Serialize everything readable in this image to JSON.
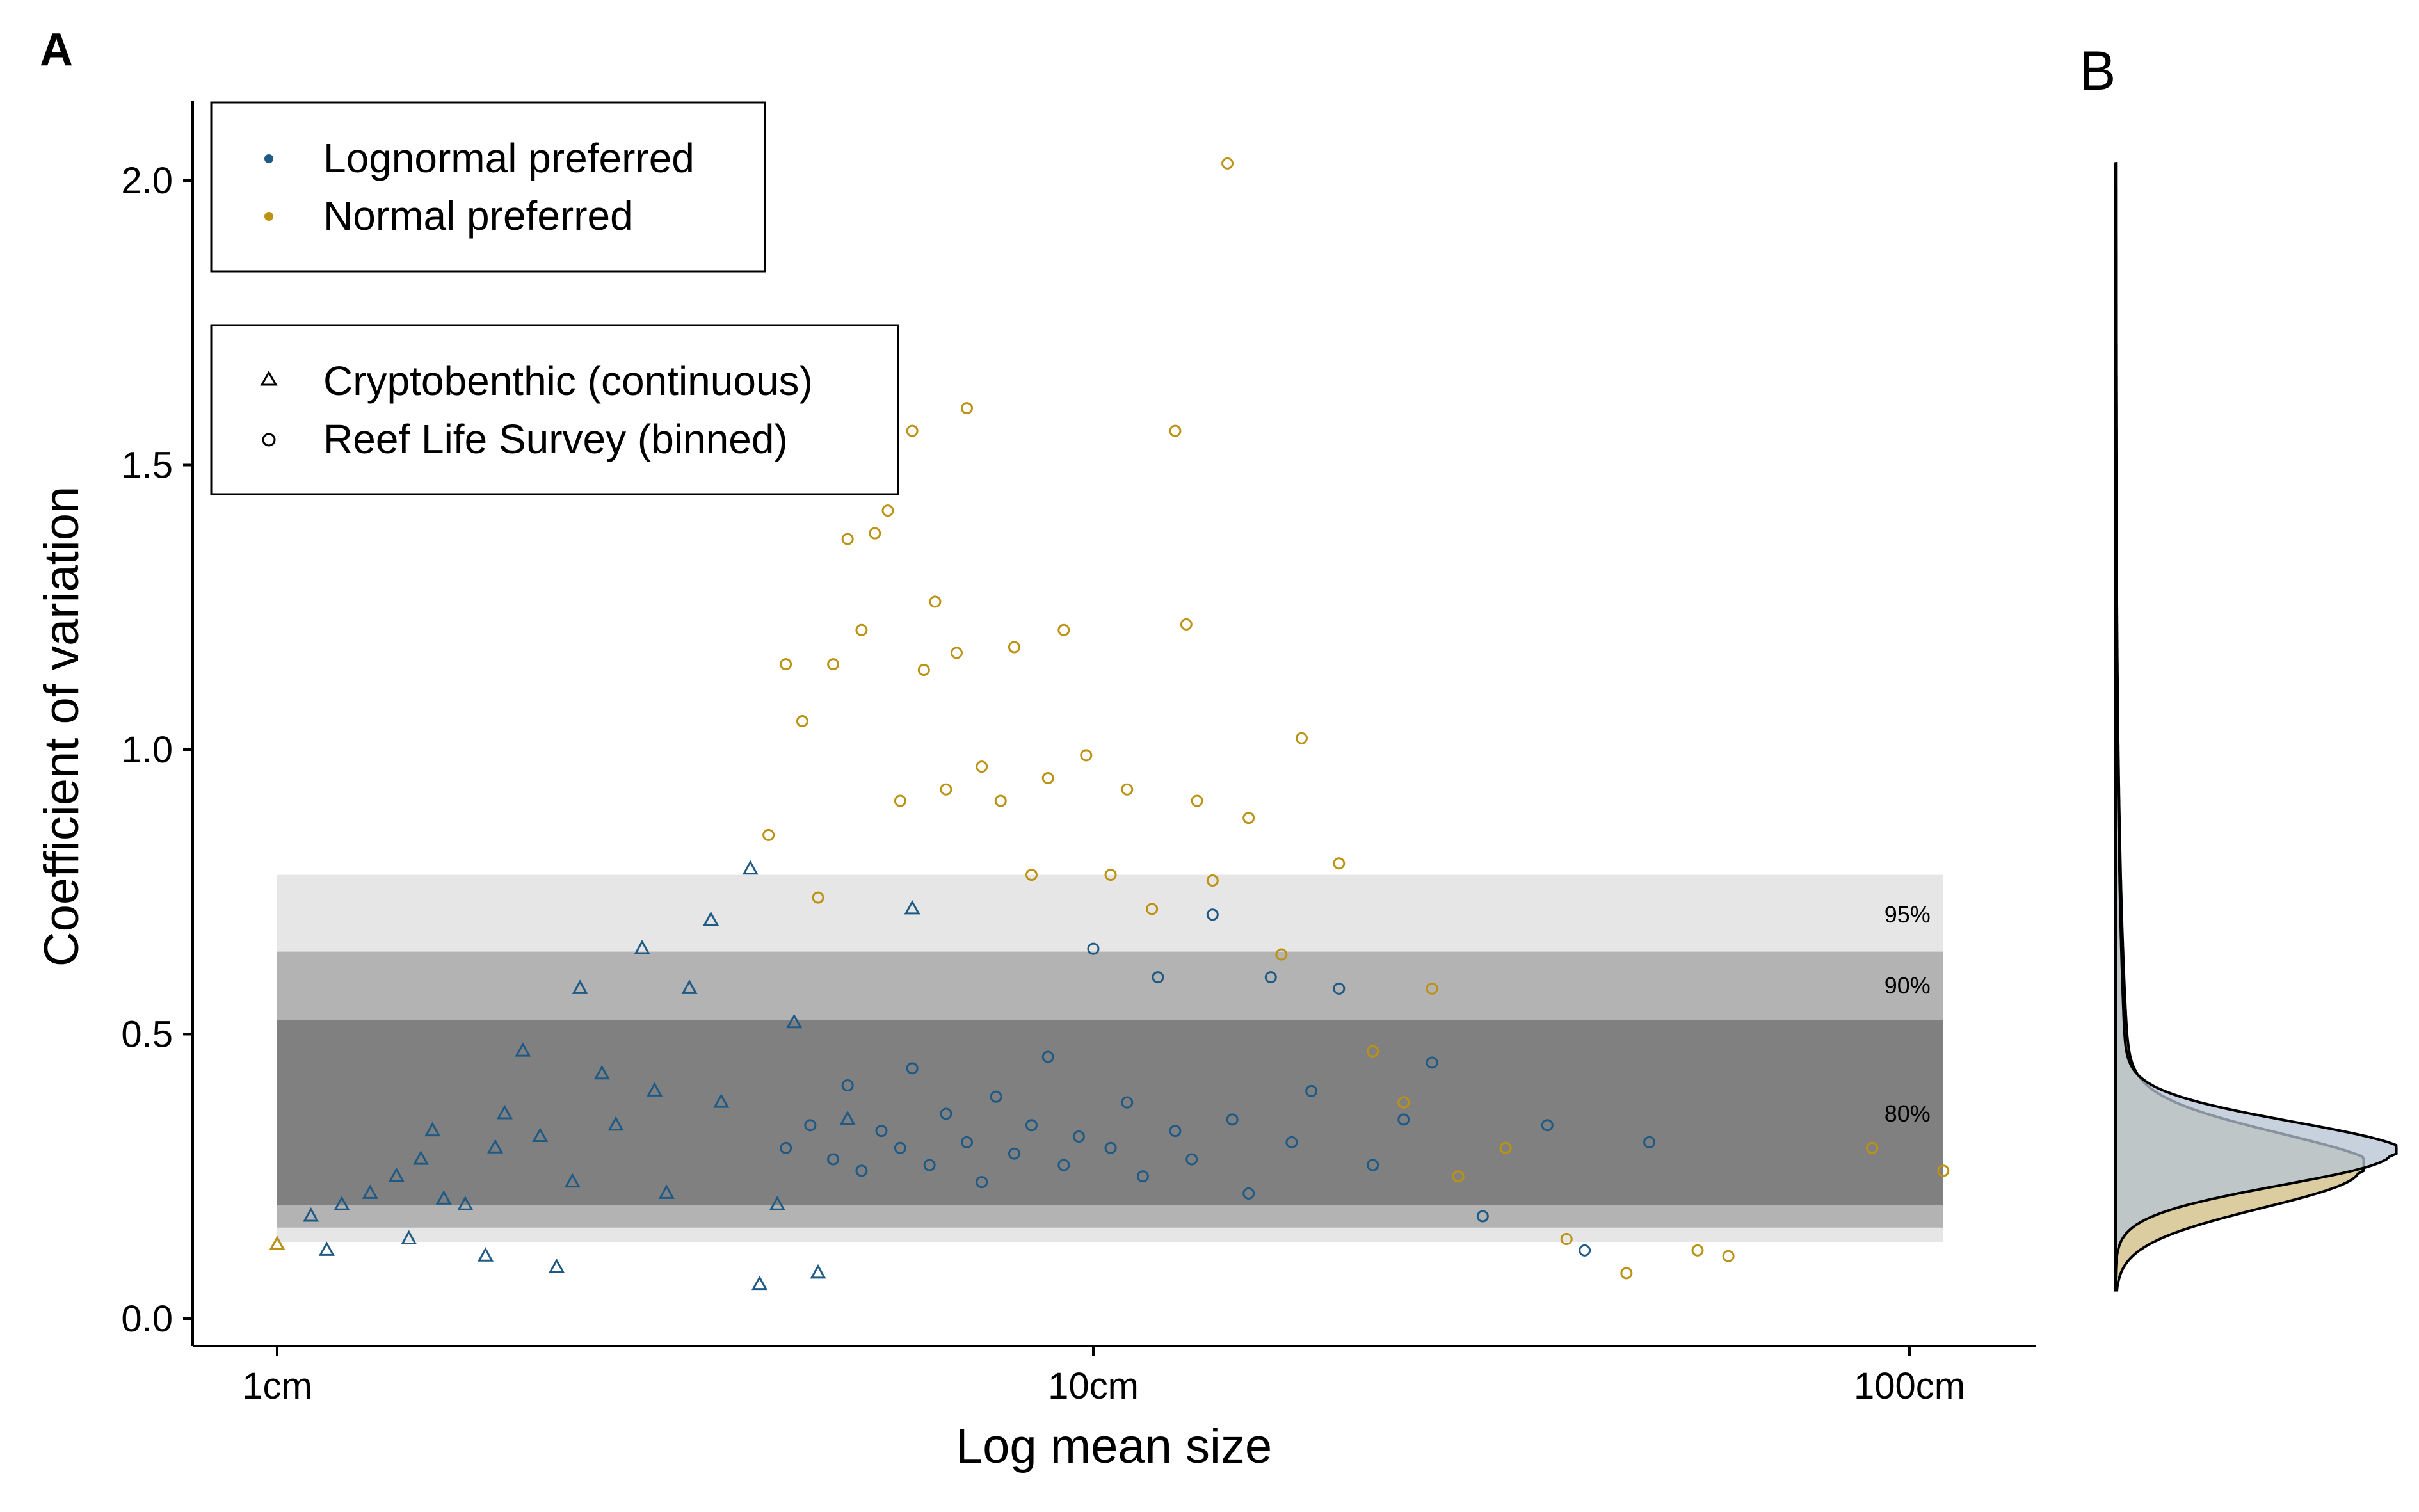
{
  "panel_labels": {
    "a": "A",
    "b": "B"
  },
  "colors": {
    "lognormal": "#1f5a85",
    "normal": "#bb9212",
    "band95": "#e6e6e6",
    "band90": "#b3b3b3",
    "band80": "#808080",
    "density_normal_fill": "#d8c896",
    "density_lognormal_fill": "#b5c3d4",
    "density_overlap_fill": "#b9b78f"
  },
  "legend_color": {
    "items": [
      {
        "label": "Lognormal preferred",
        "color": "#1f5a85"
      },
      {
        "label": "Normal preferred",
        "color": "#bb9212"
      }
    ]
  },
  "legend_shape": {
    "items": [
      {
        "label": "Cryptobenthic (continuous)",
        "shape": "triangle"
      },
      {
        "label": "Reef Life Survey (binned)",
        "shape": "circle"
      }
    ]
  },
  "chart_data": {
    "type": "scatter",
    "xlabel": "Log mean size",
    "ylabel": "Coefficient of variation",
    "x_scale": "log10",
    "xlim": [
      0.8,
      140
    ],
    "ylim": [
      -0.05,
      2.14
    ],
    "x_ticks": [
      {
        "value": 1,
        "label": "1cm"
      },
      {
        "value": 10,
        "label": "10cm"
      },
      {
        "value": 100,
        "label": "100cm"
      }
    ],
    "y_ticks": [
      {
        "value": 0.0,
        "label": "0.0"
      },
      {
        "value": 0.5,
        "label": "0.5"
      },
      {
        "value": 1.0,
        "label": "1.0"
      },
      {
        "value": 1.5,
        "label": "1.5"
      },
      {
        "value": 2.0,
        "label": "2.0"
      }
    ],
    "grid": false,
    "bands": [
      {
        "label": "95%",
        "ymin": 0.135,
        "ymax": 0.78,
        "x_from": 1,
        "x_to": 110
      },
      {
        "label": "90%",
        "ymin": 0.16,
        "ymax": 0.645,
        "x_from": 1,
        "x_to": 110
      },
      {
        "label": "80%",
        "ymin": 0.2,
        "ymax": 0.525,
        "x_from": 1,
        "x_to": 110
      }
    ],
    "series": [
      {
        "name": "Lognormal preferred",
        "shape": "triangle",
        "points": [
          [
            1.0,
            0.13
          ],
          [
            1.1,
            0.18
          ],
          [
            1.15,
            0.12
          ],
          [
            1.2,
            0.2
          ],
          [
            1.3,
            0.22
          ],
          [
            1.4,
            0.25
          ],
          [
            1.45,
            0.14
          ],
          [
            1.5,
            0.28
          ],
          [
            1.55,
            0.33
          ],
          [
            1.6,
            0.21
          ],
          [
            1.7,
            0.2
          ],
          [
            1.8,
            0.11
          ],
          [
            1.85,
            0.3
          ],
          [
            1.9,
            0.36
          ],
          [
            2.0,
            0.47
          ],
          [
            2.1,
            0.32
          ],
          [
            2.2,
            0.09
          ],
          [
            2.3,
            0.24
          ],
          [
            2.35,
            0.58
          ],
          [
            2.5,
            0.43
          ],
          [
            2.6,
            0.34
          ],
          [
            2.8,
            0.65
          ],
          [
            2.9,
            0.4
          ],
          [
            3.0,
            0.22
          ],
          [
            3.2,
            0.58
          ],
          [
            3.4,
            0.7
          ],
          [
            3.5,
            0.38
          ],
          [
            3.8,
            0.79
          ],
          [
            3.9,
            0.06
          ],
          [
            4.1,
            0.2
          ],
          [
            4.3,
            0.52
          ],
          [
            4.6,
            0.08
          ],
          [
            5.0,
            0.35
          ],
          [
            6.0,
            0.72
          ]
        ]
      },
      {
        "name": "Lognormal preferred",
        "shape": "circle",
        "points": [
          [
            4.2,
            0.3
          ],
          [
            4.5,
            0.34
          ],
          [
            4.8,
            0.28
          ],
          [
            5.0,
            0.41
          ],
          [
            5.2,
            0.26
          ],
          [
            5.5,
            0.33
          ],
          [
            5.8,
            0.3
          ],
          [
            6.0,
            0.44
          ],
          [
            6.3,
            0.27
          ],
          [
            6.6,
            0.36
          ],
          [
            7.0,
            0.31
          ],
          [
            7.3,
            0.24
          ],
          [
            7.6,
            0.39
          ],
          [
            8.0,
            0.29
          ],
          [
            8.4,
            0.34
          ],
          [
            8.8,
            0.46
          ],
          [
            9.2,
            0.27
          ],
          [
            9.6,
            0.32
          ],
          [
            10.0,
            0.65
          ],
          [
            10.5,
            0.3
          ],
          [
            11.0,
            0.38
          ],
          [
            11.5,
            0.25
          ],
          [
            12.0,
            0.6
          ],
          [
            12.6,
            0.33
          ],
          [
            13.2,
            0.28
          ],
          [
            14.0,
            0.71
          ],
          [
            14.8,
            0.35
          ],
          [
            15.5,
            0.22
          ],
          [
            16.5,
            0.6
          ],
          [
            17.5,
            0.31
          ],
          [
            18.5,
            0.4
          ],
          [
            20.0,
            0.58
          ],
          [
            22.0,
            0.27
          ],
          [
            24.0,
            0.35
          ],
          [
            26.0,
            0.45
          ],
          [
            30.0,
            0.18
          ],
          [
            36.0,
            0.34
          ],
          [
            40.0,
            0.12
          ],
          [
            48.0,
            0.31
          ]
        ]
      },
      {
        "name": "Normal preferred",
        "shape": "triangle",
        "points": [
          [
            1.0,
            0.13
          ]
        ]
      },
      {
        "name": "Normal preferred",
        "shape": "circle",
        "points": [
          [
            4.0,
            0.85
          ],
          [
            4.2,
            1.15
          ],
          [
            4.4,
            1.05
          ],
          [
            4.6,
            0.74
          ],
          [
            4.8,
            1.15
          ],
          [
            5.0,
            1.37
          ],
          [
            5.2,
            1.21
          ],
          [
            5.4,
            1.38
          ],
          [
            5.6,
            1.42
          ],
          [
            5.8,
            0.91
          ],
          [
            6.0,
            1.56
          ],
          [
            6.2,
            1.14
          ],
          [
            6.4,
            1.26
          ],
          [
            6.6,
            0.93
          ],
          [
            6.8,
            1.17
          ],
          [
            7.0,
            1.6
          ],
          [
            7.3,
            0.97
          ],
          [
            7.7,
            0.91
          ],
          [
            8.0,
            1.18
          ],
          [
            8.4,
            0.78
          ],
          [
            8.8,
            0.95
          ],
          [
            9.2,
            1.21
          ],
          [
            9.8,
            0.99
          ],
          [
            10.5,
            0.78
          ],
          [
            11.0,
            0.93
          ],
          [
            11.8,
            0.72
          ],
          [
            12.6,
            1.56
          ],
          [
            13.0,
            1.22
          ],
          [
            13.4,
            0.91
          ],
          [
            14.0,
            0.77
          ],
          [
            14.6,
            2.03
          ],
          [
            15.5,
            0.88
          ],
          [
            17.0,
            0.64
          ],
          [
            18.0,
            1.02
          ],
          [
            20.0,
            0.8
          ],
          [
            22.0,
            0.47
          ],
          [
            24.0,
            0.38
          ],
          [
            26.0,
            0.58
          ],
          [
            28.0,
            0.25
          ],
          [
            32.0,
            0.3
          ],
          [
            38.0,
            0.14
          ],
          [
            45.0,
            0.08
          ],
          [
            55.0,
            0.12
          ],
          [
            60.0,
            0.11
          ],
          [
            90.0,
            0.3
          ],
          [
            110.0,
            0.26
          ]
        ]
      }
    ]
  },
  "density_panel": {
    "y_range": [
      0.05,
      2.03
    ]
  }
}
